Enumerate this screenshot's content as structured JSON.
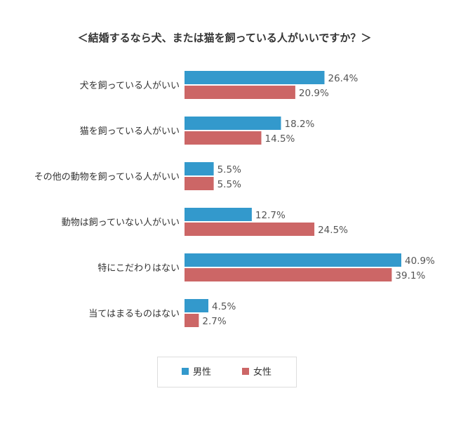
{
  "chart_data": {
    "type": "bar",
    "orientation": "horizontal",
    "title": "＜結婚するなら犬、または猫を飼っている人がいいですか？＞",
    "categories": [
      "犬を飼っている人がいい",
      "猫を飼っている人がいい",
      "その他の動物を飼っている人がいい",
      "動物は飼っていない人がいい",
      "特にこだわりはない",
      "当てはまるものはない"
    ],
    "series": [
      {
        "name": "男性",
        "color": "#3399cc",
        "values": [
          26.4,
          18.2,
          5.5,
          12.7,
          40.9,
          4.5
        ],
        "labels": [
          "26.4%",
          "18.2%",
          "5.5%",
          "12.7%",
          "40.9%",
          "4.5%"
        ]
      },
      {
        "name": "女性",
        "color": "#cc6666",
        "values": [
          20.9,
          14.5,
          5.5,
          24.5,
          39.1,
          2.7
        ],
        "labels": [
          "20.9%",
          "14.5%",
          "5.5%",
          "24.5%",
          "39.1%",
          "2.7%"
        ]
      }
    ],
    "unit": "%",
    "xlim": [
      0,
      40.9
    ],
    "grid": false,
    "legend": "bottom"
  }
}
